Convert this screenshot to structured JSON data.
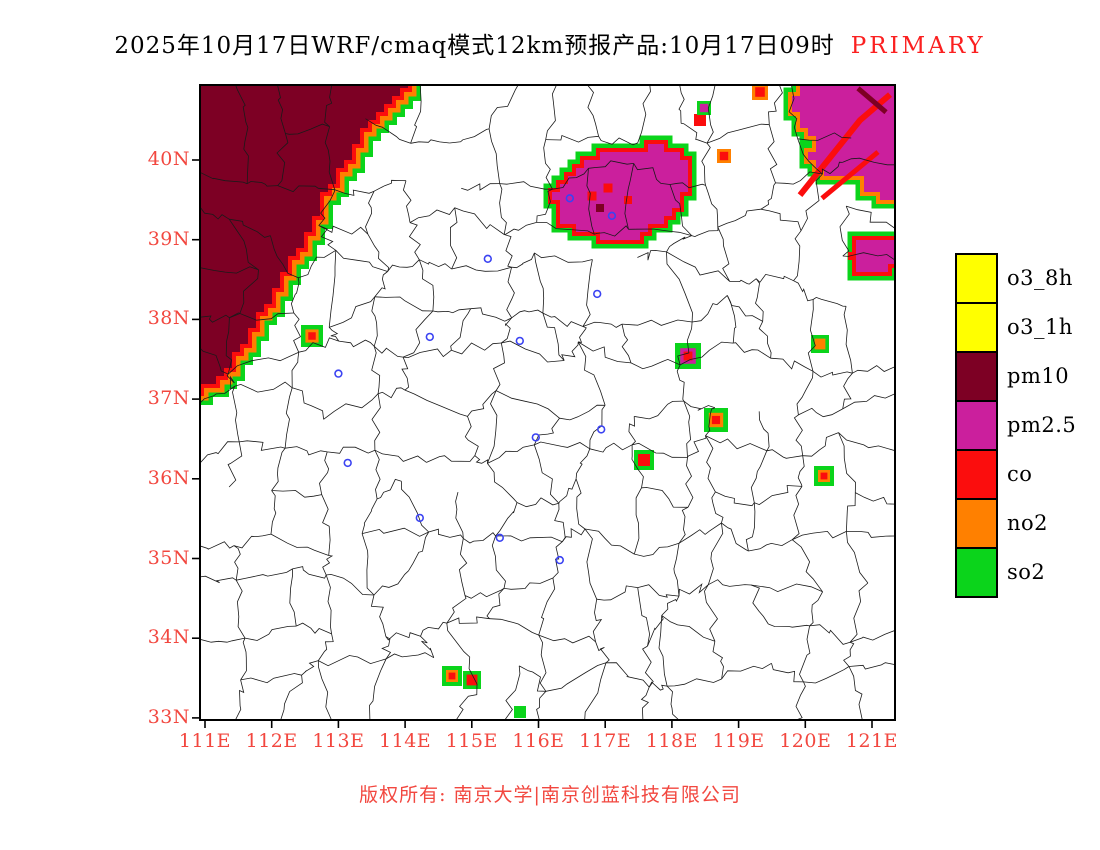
{
  "title": {
    "main": "2025年10月17日WRF/cmaq模式12km预报产品:10月17日09时",
    "highlight": "PRIMARY"
  },
  "axes": {
    "y_ticks": [
      "40N",
      "39N",
      "38N",
      "37N",
      "36N",
      "35N",
      "34N",
      "33N"
    ],
    "x_ticks": [
      "111E",
      "112E",
      "113E",
      "114E",
      "115E",
      "116E",
      "117E",
      "118E",
      "119E",
      "120E",
      "121E"
    ]
  },
  "legend": {
    "items": [
      {
        "label": "o3_8h",
        "key": "o3_8h"
      },
      {
        "label": "o3_1h",
        "key": "o3_1h"
      },
      {
        "label": "pm10",
        "key": "pm10"
      },
      {
        "label": "pm2.5",
        "key": "pm2_5"
      },
      {
        "label": "co",
        "key": "co"
      },
      {
        "label": "no2",
        "key": "no2"
      },
      {
        "label": "so2",
        "key": "so2"
      }
    ]
  },
  "palette": {
    "o3_8h": "#ffff00",
    "o3_1h": "#ffff00",
    "pm10": "#7d0024",
    "pm2_5": "#cb1f9d",
    "co": "#fb0d0d",
    "no2": "#ff8000",
    "so2": "#0bd41b"
  },
  "colors": {
    "background": "#ffffff",
    "title_text": "#000000",
    "highlight": "#fb2020",
    "axis_label": "#f2473f",
    "footer": "#f2473f",
    "frame": "#000000"
  },
  "footer": {
    "copyright": "版权所有: 南京大学|南京创蓝科技有限公司"
  },
  "map_features": {
    "marker_color": "#3b43f2",
    "boundary_color": "#1a1a1a",
    "regions": [
      {
        "name": "pm10-northwest",
        "fill": "pm10",
        "rings": [
          "so2",
          "no2",
          "co"
        ],
        "points": [
          [
            110.7,
            41.3
          ],
          [
            114.12,
            41.3
          ],
          [
            114.07,
            40.94
          ],
          [
            113.5,
            40.48
          ],
          [
            113.08,
            39.96
          ],
          [
            112.8,
            39.55
          ],
          [
            112.6,
            39.17
          ],
          [
            112.38,
            38.83
          ],
          [
            112.17,
            38.52
          ],
          [
            111.97,
            38.22
          ],
          [
            111.79,
            37.97
          ],
          [
            111.63,
            37.74
          ],
          [
            111.45,
            37.53
          ],
          [
            111.28,
            37.33
          ],
          [
            111.12,
            37.18
          ],
          [
            110.7,
            37.05
          ]
        ]
      },
      {
        "name": "pm25-central",
        "fill": "pm2_5",
        "rings": [
          "so2",
          "co"
        ],
        "points": [
          [
            116.29,
            39.35
          ],
          [
            116.26,
            39.55
          ],
          [
            116.4,
            39.75
          ],
          [
            116.62,
            39.87
          ],
          [
            116.8,
            40.03
          ],
          [
            117.04,
            40.13
          ],
          [
            117.3,
            40.15
          ],
          [
            117.55,
            40.1
          ],
          [
            117.75,
            40.23
          ],
          [
            117.94,
            40.15
          ],
          [
            118.15,
            40.0
          ],
          [
            118.24,
            39.81
          ],
          [
            118.2,
            39.6
          ],
          [
            118.09,
            39.44
          ],
          [
            117.94,
            39.31
          ],
          [
            117.75,
            39.18
          ],
          [
            117.52,
            39.02
          ],
          [
            117.25,
            38.97
          ],
          [
            117.0,
            39.02
          ],
          [
            116.77,
            39.12
          ],
          [
            116.55,
            39.17
          ],
          [
            116.37,
            39.22
          ]
        ]
      },
      {
        "name": "pm25-northeast",
        "fill": "pm2_5",
        "rings": [
          "so2",
          "no2"
        ],
        "points": [
          [
            119.89,
            41.2
          ],
          [
            119.87,
            40.94
          ],
          [
            119.85,
            40.63
          ],
          [
            120.0,
            40.4
          ],
          [
            120.19,
            40.25
          ],
          [
            120.1,
            40.03
          ],
          [
            120.22,
            39.85
          ],
          [
            120.45,
            39.75
          ],
          [
            120.64,
            39.85
          ],
          [
            120.79,
            39.77
          ],
          [
            120.94,
            39.62
          ],
          [
            121.12,
            39.52
          ],
          [
            121.5,
            39.47
          ],
          [
            121.5,
            41.2
          ]
        ]
      },
      {
        "name": "pm25-east-coast",
        "fill": "pm2_5",
        "rings": [
          "so2",
          "co"
        ],
        "points": [
          [
            120.97,
            39.02
          ],
          [
            120.79,
            38.93
          ],
          [
            120.7,
            38.77
          ],
          [
            120.82,
            38.62
          ],
          [
            121.04,
            38.59
          ],
          [
            121.24,
            38.68
          ],
          [
            121.5,
            38.72
          ],
          [
            121.5,
            39.0
          ]
        ]
      }
    ],
    "spots": [
      {
        "lon": 112.6,
        "lat": 37.77,
        "size": 22,
        "colors": [
          "so2",
          "no2",
          "co"
        ]
      },
      {
        "lon": 118.24,
        "lat": 37.54,
        "size": 26,
        "colors": [
          "so2",
          "pm2_5",
          "co"
        ]
      },
      {
        "lon": 118.66,
        "lat": 36.74,
        "size": 24,
        "colors": [
          "so2",
          "no2",
          "co"
        ]
      },
      {
        "lon": 117.61,
        "lat": 36.22,
        "size": 20,
        "colors": [
          "so2",
          "co"
        ]
      },
      {
        "lon": 120.25,
        "lat": 37.69,
        "size": 18,
        "colors": [
          "so2",
          "no2"
        ]
      },
      {
        "lon": 120.31,
        "lat": 36.02,
        "size": 20,
        "colors": [
          "so2",
          "no2",
          "co"
        ]
      },
      {
        "lon": 114.7,
        "lat": 33.53,
        "size": 20,
        "colors": [
          "so2",
          "no2",
          "co"
        ]
      },
      {
        "lon": 115.03,
        "lat": 33.49,
        "size": 18,
        "colors": [
          "so2",
          "co"
        ]
      },
      {
        "lon": 115.74,
        "lat": 33.05,
        "size": 12,
        "colors": [
          "so2"
        ]
      },
      {
        "lon": 118.44,
        "lat": 40.49,
        "size": 12,
        "colors": [
          "co"
        ]
      },
      {
        "lon": 119.35,
        "lat": 40.85,
        "size": 16,
        "colors": [
          "no2",
          "co"
        ]
      },
      {
        "lon": 118.48,
        "lat": 40.65,
        "size": 14,
        "colors": [
          "so2",
          "pm2_5"
        ]
      },
      {
        "lon": 118.77,
        "lat": 40.03,
        "size": 14,
        "colors": [
          "no2",
          "co"
        ]
      },
      {
        "lon": 116.8,
        "lat": 39.55,
        "size": 9,
        "colors": [
          "co"
        ]
      },
      {
        "lon": 117.07,
        "lat": 39.65,
        "size": 9,
        "colors": [
          "co"
        ]
      },
      {
        "lon": 117.34,
        "lat": 39.5,
        "size": 8,
        "colors": [
          "co"
        ]
      },
      {
        "lon": 116.92,
        "lat": 39.4,
        "size": 8,
        "colors": [
          "pm10"
        ]
      }
    ],
    "streaks": [
      {
        "color": "co",
        "width": 6,
        "points": [
          [
            119.92,
            39.56
          ],
          [
            120.82,
            40.5
          ],
          [
            121.27,
            40.82
          ]
        ]
      },
      {
        "color": "co",
        "width": 5,
        "points": [
          [
            120.25,
            39.52
          ],
          [
            121.09,
            40.1
          ]
        ]
      },
      {
        "color": "pm10",
        "width": 5,
        "points": [
          [
            120.79,
            40.9
          ],
          [
            121.21,
            40.6
          ]
        ]
      }
    ],
    "markers": [
      [
        116.47,
        39.52
      ],
      [
        117.1,
        39.3
      ],
      [
        115.24,
        38.76
      ],
      [
        116.88,
        38.32
      ],
      [
        115.72,
        37.73
      ],
      [
        113.0,
        37.32
      ],
      [
        113.14,
        36.2
      ],
      [
        114.22,
        35.51
      ],
      [
        115.42,
        35.26
      ],
      [
        115.96,
        36.52
      ],
      [
        116.94,
        36.62
      ],
      [
        116.32,
        34.98
      ],
      [
        114.37,
        37.78
      ]
    ]
  }
}
